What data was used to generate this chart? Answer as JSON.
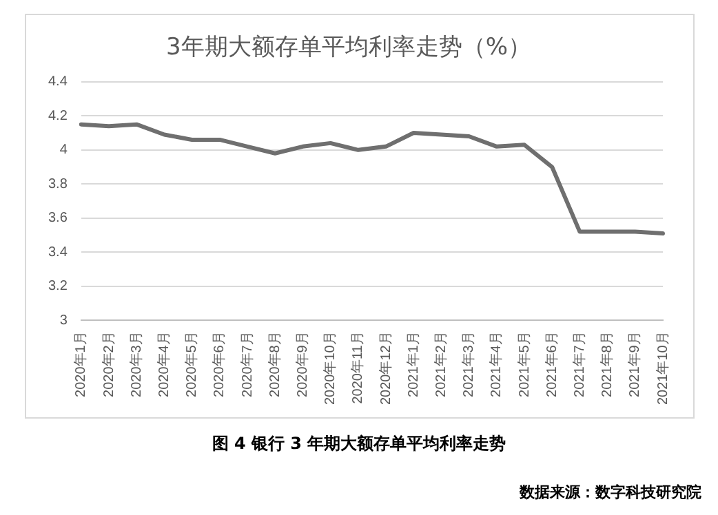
{
  "chart_data": {
    "type": "line",
    "title": "3年期大额存单平均利率走势（%）",
    "categories": [
      "2020年1月",
      "2020年2月",
      "2020年3月",
      "2020年4月",
      "2020年5月",
      "2020年6月",
      "2020年7月",
      "2020年8月",
      "2020年9月",
      "2020年10月",
      "2020年11月",
      "2020年12月",
      "2021年1月",
      "2021年2月",
      "2021年3月",
      "2021年4月",
      "2021年5月",
      "2021年6月",
      "2021年7月",
      "2021年8月",
      "2021年9月",
      "2021年10月"
    ],
    "series": [
      {
        "color": "#6f6f6f",
        "values": [
          4.15,
          4.14,
          4.15,
          4.09,
          4.06,
          4.06,
          4.02,
          3.98,
          4.02,
          4.04,
          4.0,
          4.02,
          4.1,
          4.09,
          4.08,
          4.02,
          4.03,
          3.9,
          3.52,
          3.52,
          3.52,
          3.51
        ]
      }
    ],
    "ylim": [
      3,
      4.4
    ],
    "yticks": [
      3,
      3.2,
      3.4,
      3.6,
      3.8,
      4,
      4.2,
      4.4
    ],
    "grid": "y",
    "legend": false,
    "marker": "none",
    "line_style": "solid",
    "annotations": [
      "图 4 银行 3 年期大额存单平均利率走势",
      "数据来源：数字科技研究院"
    ]
  }
}
